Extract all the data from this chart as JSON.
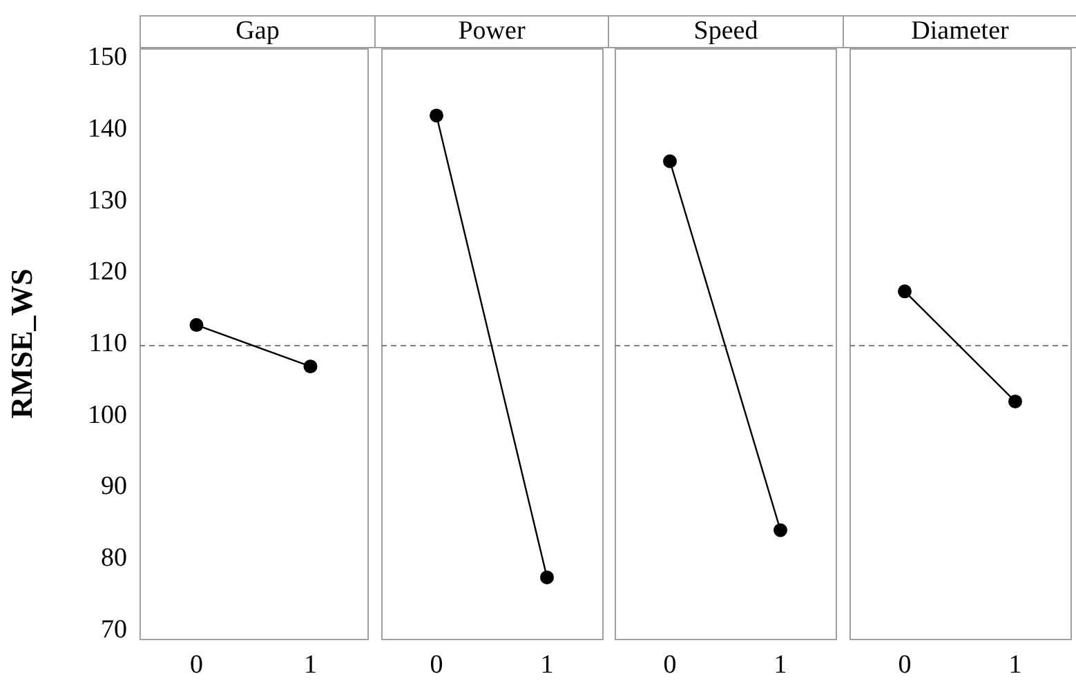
{
  "chart_data": [
    {
      "type": "line",
      "title": "Gap",
      "ylabel": "RMSE_WS",
      "categories": [
        "0",
        "1"
      ],
      "series": [
        {
          "color": "#000000",
          "values": [
            112.7,
            106.9
          ]
        }
      ],
      "ylim": [
        68.8,
        151.4
      ],
      "yticks": [
        70,
        80,
        90,
        100,
        110,
        120,
        130,
        140,
        150
      ],
      "grid": false,
      "marker": "circle",
      "line_style": "solid",
      "ref_lines": [
        {
          "axis": "y",
          "value": 109.8,
          "color": "#808080",
          "line_style": "dashed"
        }
      ]
    },
    {
      "type": "line",
      "title": "Power",
      "categories": [
        "0",
        "1"
      ],
      "series": [
        {
          "color": "#000000",
          "values": [
            142.0,
            77.4
          ]
        }
      ],
      "ylim": [
        68.8,
        151.4
      ],
      "yticks": [
        70,
        80,
        90,
        100,
        110,
        120,
        130,
        140,
        150
      ],
      "tick_labels": "x",
      "grid": false,
      "marker": "circle",
      "line_style": "solid",
      "ref_lines": [
        {
          "axis": "y",
          "value": 109.8,
          "color": "#808080",
          "line_style": "dashed"
        }
      ]
    },
    {
      "type": "line",
      "title": "Speed",
      "categories": [
        "0",
        "1"
      ],
      "series": [
        {
          "color": "#000000",
          "values": [
            135.6,
            84.0
          ]
        }
      ],
      "ylim": [
        68.8,
        151.4
      ],
      "yticks": [
        70,
        80,
        90,
        100,
        110,
        120,
        130,
        140,
        150
      ],
      "tick_labels": "x",
      "grid": false,
      "marker": "circle",
      "line_style": "solid",
      "ref_lines": [
        {
          "axis": "y",
          "value": 109.8,
          "color": "#808080",
          "line_style": "dashed"
        }
      ]
    },
    {
      "type": "line",
      "title": "Diameter",
      "categories": [
        "0",
        "1"
      ],
      "series": [
        {
          "color": "#000000",
          "values": [
            117.4,
            102.0
          ]
        }
      ],
      "ylim": [
        68.8,
        151.4
      ],
      "yticks": [
        70,
        80,
        90,
        100,
        110,
        120,
        130,
        140,
        150
      ],
      "tick_labels": "x",
      "grid": false,
      "marker": "circle",
      "line_style": "solid",
      "ref_lines": [
        {
          "axis": "y",
          "value": 109.8,
          "color": "#808080",
          "line_style": "dashed"
        }
      ]
    }
  ]
}
